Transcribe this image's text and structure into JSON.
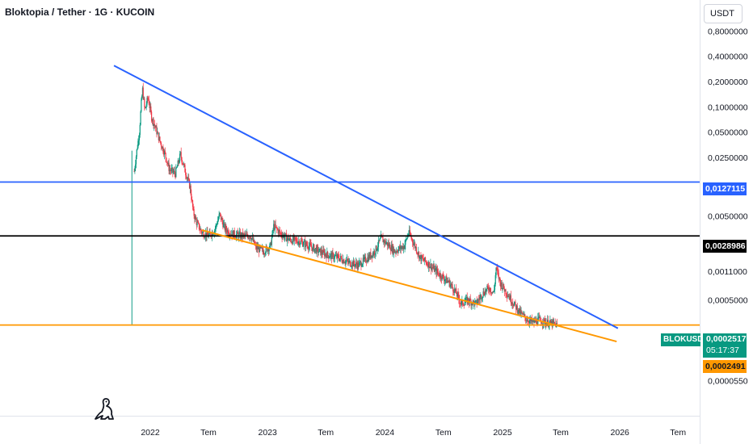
{
  "header": {
    "title": "Bloktopia / Tether · 1G · KUCOIN",
    "currency_button": "USDT"
  },
  "chart_data": {
    "type": "candlestick",
    "scale": "log",
    "y_ticks": [
      {
        "value": 0.8,
        "label": "0,8000000"
      },
      {
        "value": 0.4,
        "label": "0,4000000"
      },
      {
        "value": 0.2,
        "label": "0,2000000"
      },
      {
        "value": 0.1,
        "label": "0,1000000"
      },
      {
        "value": 0.05,
        "label": "0,0500000"
      },
      {
        "value": 0.025,
        "label": "0,0250000"
      },
      {
        "value": 0.005,
        "label": "0,0050000"
      },
      {
        "value": 0.0011,
        "label": "0,0011000"
      },
      {
        "value": 0.0005,
        "label": "0,0005000"
      },
      {
        "value": 5.5e-05,
        "label": "0,0000550"
      }
    ],
    "x_ticks": [
      "2022",
      "Tem",
      "2023",
      "Tem",
      "2024",
      "Tem",
      "2025",
      "Tem",
      "2026",
      "Tem"
    ],
    "x_tick_dates": [
      "2022-01-01",
      "2022-07-01",
      "2023-01-01",
      "2023-07-01",
      "2024-01-01",
      "2024-07-01",
      "2025-01-01",
      "2025-07-01",
      "2026-01-01",
      "2026-07-01"
    ],
    "horizontal_levels": [
      {
        "value": 0.0127115,
        "label": "0,0127115",
        "color": "#2962ff"
      },
      {
        "value": 0.0028986,
        "label": "0,0028986",
        "color": "#000000"
      },
      {
        "value": 0.0002517,
        "label": "0,0002517",
        "color": "#ff9800"
      }
    ],
    "trend_lines": [
      {
        "color": "#2962ff",
        "from": {
          "date": "2021-09-10",
          "value": 0.31
        },
        "to": {
          "date": "2025-12-26",
          "value": 0.00023
        }
      },
      {
        "color": "#ff9800",
        "from": {
          "date": "2022-06-10",
          "value": 0.0034
        },
        "to": {
          "date": "2025-12-22",
          "value": 0.00016
        }
      }
    ],
    "last_price": {
      "symbol": "BLOKUSDT",
      "value": "0,0002517",
      "countdown": "05:17:37",
      "color": "#089981"
    },
    "second_tag": {
      "value": "0,0002491",
      "color": "#ff9800"
    },
    "up_color": "#089981",
    "down_color": "#f23645",
    "price_path": [
      [
        "2021-11-05",
        0.00025
      ],
      [
        "2021-11-12",
        0.017
      ],
      [
        "2021-11-20",
        0.03
      ],
      [
        "2021-11-28",
        0.05
      ],
      [
        "2021-12-04",
        0.11
      ],
      [
        "2021-12-08",
        0.16
      ],
      [
        "2021-12-15",
        0.09
      ],
      [
        "2021-12-25",
        0.13
      ],
      [
        "2022-01-05",
        0.075
      ],
      [
        "2022-01-15",
        0.06
      ],
      [
        "2022-02-01",
        0.038
      ],
      [
        "2022-02-15",
        0.028
      ],
      [
        "2022-03-01",
        0.018
      ],
      [
        "2022-03-20",
        0.016
      ],
      [
        "2022-04-05",
        0.027
      ],
      [
        "2022-04-20",
        0.017
      ],
      [
        "2022-05-05",
        0.011
      ],
      [
        "2022-05-15",
        0.0055
      ],
      [
        "2022-05-25",
        0.0042
      ],
      [
        "2022-06-10",
        0.0032
      ],
      [
        "2022-07-01",
        0.0029
      ],
      [
        "2022-07-20",
        0.0034
      ],
      [
        "2022-08-05",
        0.0052
      ],
      [
        "2022-08-20",
        0.0036
      ],
      [
        "2022-09-10",
        0.0031
      ],
      [
        "2022-10-10",
        0.0029
      ],
      [
        "2022-11-10",
        0.0029
      ],
      [
        "2022-11-25",
        0.0021
      ],
      [
        "2022-12-20",
        0.0019
      ],
      [
        "2023-01-10",
        0.0022
      ],
      [
        "2023-01-20",
        0.0038
      ],
      [
        "2023-02-10",
        0.0031
      ],
      [
        "2023-03-10",
        0.0026
      ],
      [
        "2023-04-10",
        0.0025
      ],
      [
        "2023-05-10",
        0.0022
      ],
      [
        "2023-06-10",
        0.0019
      ],
      [
        "2023-07-10",
        0.0017
      ],
      [
        "2023-08-10",
        0.0016
      ],
      [
        "2023-09-10",
        0.0014
      ],
      [
        "2023-10-10",
        0.0013
      ],
      [
        "2023-11-10",
        0.0016
      ],
      [
        "2023-12-01",
        0.0019
      ],
      [
        "2023-12-20",
        0.0027
      ],
      [
        "2024-01-10",
        0.0023
      ],
      [
        "2024-02-01",
        0.0019
      ],
      [
        "2024-03-01",
        0.0022
      ],
      [
        "2024-03-15",
        0.0032
      ],
      [
        "2024-04-01",
        0.0023
      ],
      [
        "2024-04-20",
        0.0016
      ],
      [
        "2024-05-20",
        0.0013
      ],
      [
        "2024-06-20",
        0.001
      ],
      [
        "2024-07-20",
        0.0008
      ],
      [
        "2024-08-10",
        0.0006
      ],
      [
        "2024-08-25",
        0.00045
      ],
      [
        "2024-09-15",
        0.0005
      ],
      [
        "2024-10-10",
        0.00045
      ],
      [
        "2024-11-01",
        0.0006
      ],
      [
        "2024-11-20",
        0.0007
      ],
      [
        "2024-12-05",
        0.0006
      ],
      [
        "2024-12-12",
        0.0012
      ],
      [
        "2024-12-25",
        0.0008
      ],
      [
        "2025-01-15",
        0.0006
      ],
      [
        "2025-02-05",
        0.00045
      ],
      [
        "2025-02-25",
        0.00035
      ],
      [
        "2025-03-15",
        0.0003
      ],
      [
        "2025-04-05",
        0.00027
      ],
      [
        "2025-04-25",
        0.00029
      ],
      [
        "2025-05-15",
        0.00027
      ],
      [
        "2025-06-05",
        0.00026
      ],
      [
        "2025-06-20",
        0.0002517
      ]
    ]
  }
}
